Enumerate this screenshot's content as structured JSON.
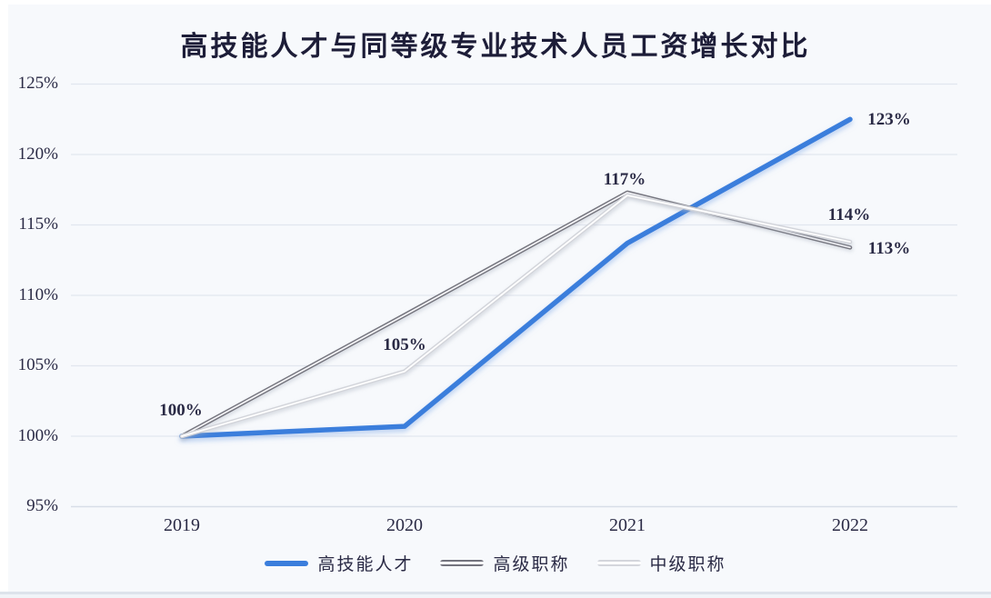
{
  "title": "高技能人才与同等级专业技术人员工资增长对比",
  "colors": {
    "background": "#f7f9fc",
    "text": "#2a2a45",
    "gridline": "#e2e7ef",
    "gridline_bottom": "#d8dee7",
    "series_blue": "#3b7edc",
    "series_dark_gray": "#74747e",
    "series_light_gray": "#d2d4da"
  },
  "y_axis": {
    "ticks": [
      "125%",
      "120%",
      "115%",
      "110%",
      "105%",
      "100%",
      "95%"
    ]
  },
  "x_axis": {
    "labels": [
      "2019",
      "2020",
      "2021",
      "2022"
    ]
  },
  "legend": {
    "items": [
      {
        "label": "高技能人才",
        "color": "#3b7edc"
      },
      {
        "label": "高级职称",
        "color": "#74747e"
      },
      {
        "label": "中级职称",
        "color": "#d2d4da"
      }
    ]
  },
  "chart_data": {
    "type": "line",
    "title": "高技能人才与同等级专业技术人员工资增长对比",
    "x": [
      "2019",
      "2020",
      "2021",
      "2022"
    ],
    "series": [
      {
        "name": "高技能人才",
        "color": "#3b7edc",
        "style": "solid-thick",
        "values": [
          100,
          100.7,
          113.7,
          122.5
        ],
        "labeled_points": {
          "2019": "100%",
          "2022": "123%"
        }
      },
      {
        "name": "高级职称",
        "color": "#74747e",
        "style": "tube",
        "values": [
          100,
          108.6,
          117.3,
          113.4
        ],
        "labeled_points": {
          "2021": "117%",
          "2022": "113%"
        }
      },
      {
        "name": "中级职称",
        "color": "#d2d4da",
        "style": "tube",
        "values": [
          100,
          104.6,
          117.1,
          113.8
        ],
        "labeled_points": {
          "2020": "105%",
          "2022": "114%"
        }
      }
    ],
    "xlabel": "",
    "ylabel": "",
    "ylim": [
      95,
      125
    ],
    "y_tick_step": 5,
    "unit": "percent",
    "grid": true,
    "legend_position": "bottom"
  }
}
